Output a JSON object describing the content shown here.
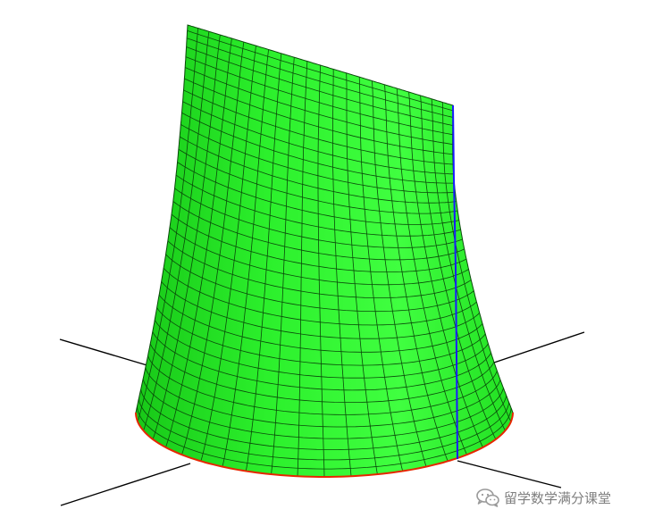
{
  "figure": {
    "surface_color": "#22ee22",
    "surface_highlight": "#44ff44",
    "surface_shadow": "#10c010",
    "mesh_color": "#0a4a0a",
    "seam_color": "#1a1aff",
    "base_curve_color": "#e62600",
    "axis_color": "#000000",
    "grid": {
      "columns": 22,
      "rows": 34
    }
  },
  "watermark": {
    "text": "留学数学满分课堂",
    "icon": "wechat-icon"
  }
}
